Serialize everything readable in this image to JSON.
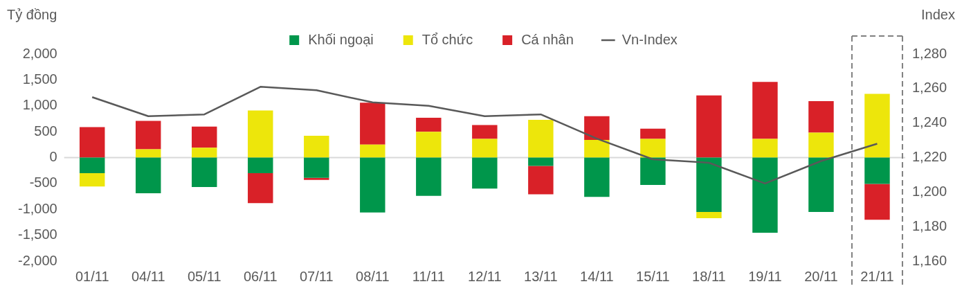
{
  "chart_data": {
    "type": "bar",
    "stacked": true,
    "ylabel": "Tỷ đồng",
    "y2label": "Index",
    "categories": [
      "01/11",
      "04/11",
      "05/11",
      "06/11",
      "07/11",
      "08/11",
      "11/11",
      "12/11",
      "13/11",
      "14/11",
      "15/11",
      "18/11",
      "19/11",
      "20/11",
      "21/11"
    ],
    "series": [
      {
        "name": "Khối ngoại",
        "color": "#00964b",
        "values": [
          -300,
          -690,
          -570,
          -300,
          -390,
          -1060,
          -740,
          -600,
          -160,
          -760,
          -530,
          -1050,
          -1450,
          -1050,
          -510
        ]
      },
      {
        "name": "Tổ chức",
        "color": "#ede60b",
        "values": [
          -260,
          160,
          190,
          910,
          420,
          250,
          500,
          360,
          730,
          340,
          360,
          -120,
          360,
          480,
          1230
        ]
      },
      {
        "name": "Cá nhân",
        "color": "#d92128",
        "values": [
          590,
          550,
          410,
          -580,
          -40,
          810,
          270,
          270,
          -550,
          460,
          200,
          1200,
          1100,
          610,
          -690
        ]
      },
      {
        "name": "Vn-Index",
        "type": "line",
        "axis": "y2",
        "color": "#595959",
        "values": [
          1255,
          1244,
          1245,
          1261,
          1259,
          1252,
          1250,
          1244,
          1245,
          1231,
          1219,
          1217,
          1205,
          1218,
          1228
        ]
      }
    ],
    "ylim": [
      -2000,
      2000
    ],
    "yticks": [
      {
        "value": -2000,
        "label": "-2,000"
      },
      {
        "value": -1500,
        "label": "-1,500"
      },
      {
        "value": -1000,
        "label": "-1,000"
      },
      -500,
      0,
      500,
      {
        "value": 1000,
        "label": "1,000"
      },
      {
        "value": 1500,
        "label": "1,500"
      },
      {
        "value": 2000,
        "label": "2,000"
      }
    ],
    "y2lim": [
      1160,
      1280
    ],
    "y2ticks": [
      {
        "value": 1160,
        "label": "1,160"
      },
      {
        "value": 1180,
        "label": "1,180"
      },
      {
        "value": 1200,
        "label": "1,200"
      },
      {
        "value": 1220,
        "label": "1,220"
      },
      {
        "value": 1240,
        "label": "1,240"
      },
      {
        "value": 1260,
        "label": "1,260"
      },
      {
        "value": 1280,
        "label": "1,280"
      }
    ],
    "ref_lines": [
      {
        "axis": "y",
        "value": 0,
        "color": "#d9d9d9"
      }
    ],
    "grid": false,
    "legend": "top",
    "marker": "none"
  }
}
